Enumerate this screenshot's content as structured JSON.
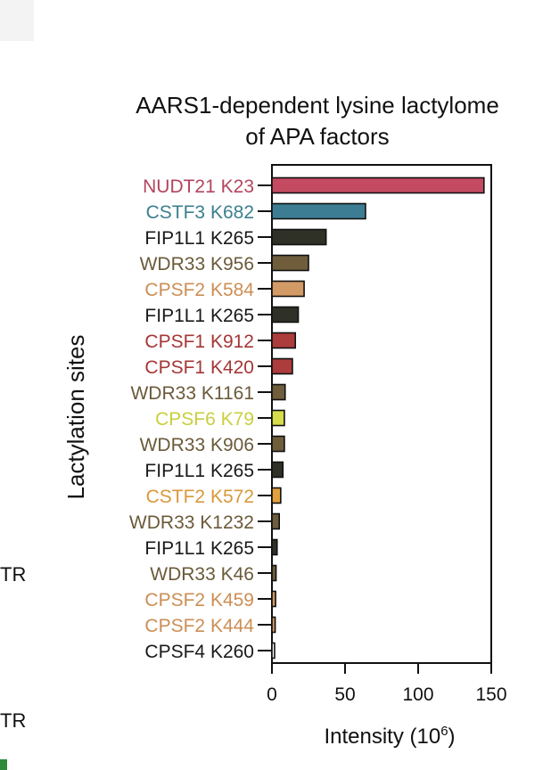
{
  "edge": {
    "text_1": "TR",
    "text_2": "TR"
  },
  "chart_data": {
    "type": "bar",
    "orientation": "horizontal",
    "title": [
      "AARS1-dependent lysine lactylome",
      "of APA factors"
    ],
    "ylabel": "Lactylation sites",
    "xlabel": "Intensity (10",
    "xlabel_sup": "6",
    "xlabel_close": ")",
    "xlim": [
      0,
      150
    ],
    "xticks": [
      "0",
      "50",
      "100",
      "150"
    ],
    "grid": false,
    "categories": [
      "NUDT21 K23",
      "CSTF3 K682",
      "FIP1L1 K265",
      "WDR33 K956",
      "CPSF2 K584",
      "FIP1L1 K265",
      "CPSF1 K912",
      "CPSF1 K420",
      "WDR33 K1161",
      "CPSF6 K79",
      "WDR33 K906",
      "FIP1L1 K265",
      "CSTF2 K572",
      "WDR33 K1232",
      "FIP1L1 K265",
      "WDR33 K46",
      "CPSF2 K459",
      "CPSF2 K444",
      "CPSF4 K260"
    ],
    "values": [
      145,
      64,
      37,
      25,
      22,
      18,
      16,
      14,
      9,
      8.5,
      8.5,
      7.5,
      6,
      5,
      3.5,
      2.8,
      2.5,
      2.2,
      1.8
    ],
    "label_colors": [
      "#b3455f",
      "#3b7f8f",
      "#1a1a1a",
      "#6b5a3a",
      "#cc8e55",
      "#1a1a1a",
      "#a63636",
      "#a63636",
      "#6b5a3a",
      "#c9cf3e",
      "#6b5a3a",
      "#1a1a1a",
      "#d9993a",
      "#6b5a3a",
      "#1a1a1a",
      "#6b5a3a",
      "#cc8e55",
      "#cc8e55",
      "#1a1a1a"
    ],
    "bar_colors": [
      "#c44a62",
      "#3d7d94",
      "#2f3126",
      "#6f5d3c",
      "#d29a64",
      "#2f3126",
      "#ad3c3c",
      "#ad3c3c",
      "#6f5d3c",
      "#d6dc4b",
      "#6f5d3c",
      "#2f3126",
      "#e2a03c",
      "#6f5d3c",
      "#2f3126",
      "#6f5d3c",
      "#d29a64",
      "#d29a64",
      "#ffffff"
    ]
  }
}
